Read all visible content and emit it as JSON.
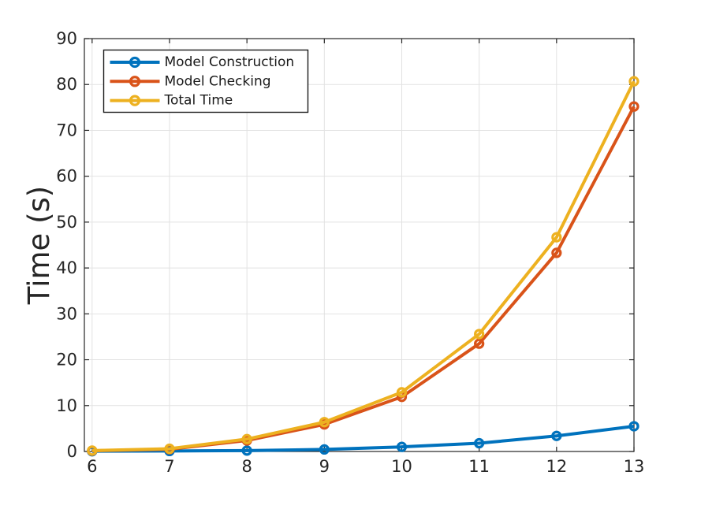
{
  "figure": {
    "background": "#ffffff",
    "axis_color": "#262626",
    "grid_color": "#e2e2e2",
    "tick_label_color": "#262626",
    "legend_text_color": "#1a1a1a",
    "legend_border_color": "#1a1a1a",
    "legend_background": "#ffffff"
  },
  "chart_data": {
    "type": "line",
    "title": "",
    "xlabel": "",
    "ylabel": "Time (s)",
    "x": [
      6,
      7,
      8,
      9,
      10,
      11,
      12,
      13
    ],
    "series": [
      {
        "name": "Model Construction",
        "color": "#0072BD",
        "values": [
          0.05,
          0.1,
          0.2,
          0.45,
          1.0,
          1.8,
          3.4,
          5.5
        ]
      },
      {
        "name": "Model Checking",
        "color": "#D95319",
        "values": [
          0.15,
          0.5,
          2.4,
          5.9,
          11.9,
          23.5,
          43.3,
          75.2
        ]
      },
      {
        "name": "Total Time",
        "color": "#EDB120",
        "values": [
          0.2,
          0.6,
          2.7,
          6.4,
          12.9,
          25.6,
          46.7,
          80.7
        ]
      }
    ],
    "xticks": [
      6,
      7,
      8,
      9,
      10,
      11,
      12,
      13
    ],
    "xtick_labels": [
      "6",
      "7",
      "8",
      "9",
      "10",
      "11",
      "12",
      "13"
    ],
    "yticks": [
      0,
      10,
      20,
      30,
      40,
      50,
      60,
      70,
      80,
      90
    ],
    "ytick_labels": [
      "0",
      "10",
      "20",
      "30",
      "40",
      "50",
      "60",
      "70",
      "80",
      "90"
    ],
    "xlim": [
      5.9,
      13
    ],
    "ylim": [
      0,
      90
    ],
    "grid": true,
    "marker": "o",
    "legend": {
      "position": "upper-left",
      "entries": [
        "Model Construction",
        "Model Checking",
        "Total Time"
      ]
    }
  }
}
